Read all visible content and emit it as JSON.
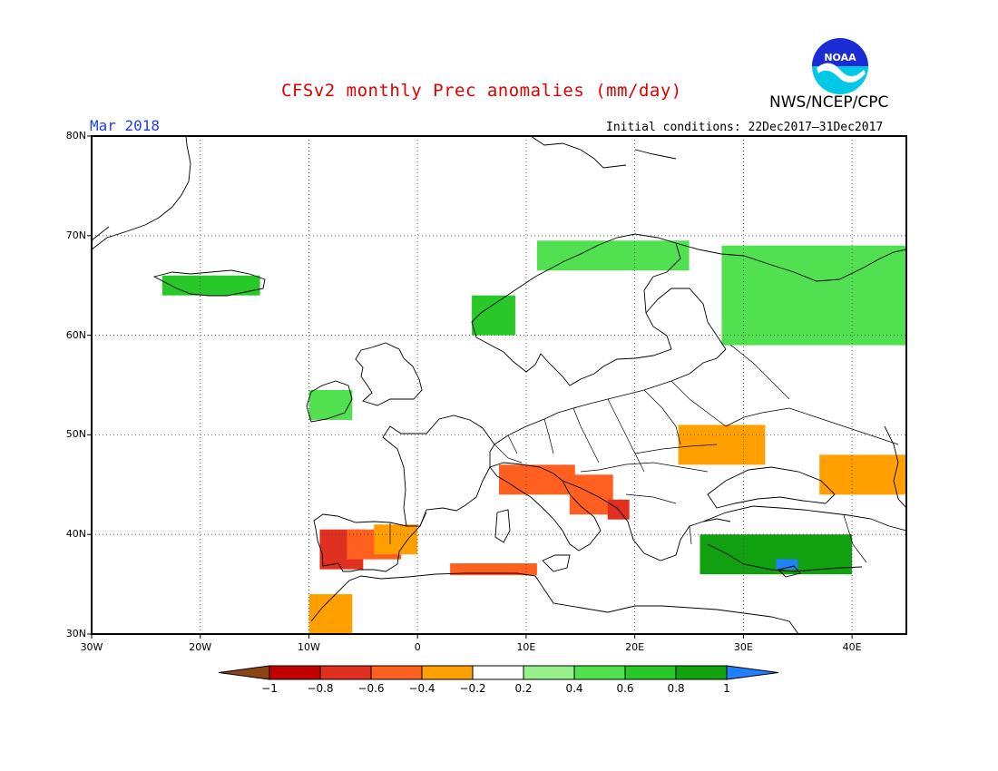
{
  "header": {
    "title": "CFSv2 monthly Prec anomalies (mm/day)",
    "org": "NWS/NCEP/CPC",
    "month": "Mar 2018",
    "init_conditions": "Initial conditions: 22Dec2017–31Dec2017",
    "logo_text": "NOAA"
  },
  "map": {
    "lon_range": [
      -30,
      45
    ],
    "lat_range": [
      30,
      80
    ],
    "lat_labels": [
      "80N",
      "70N",
      "60N",
      "50N",
      "40N",
      "30N"
    ],
    "lon_labels": [
      "30W",
      "20W",
      "10W",
      "0",
      "10E",
      "20E",
      "30E",
      "40E"
    ],
    "grid": "dotted",
    "land_color": "#ffffff",
    "border_color": "#000000"
  },
  "colorbar": {
    "labels": [
      "−1",
      "−0.8",
      "−0.6",
      "−0.4",
      "−0.2",
      "0.2",
      "0.4",
      "0.6",
      "0.8",
      "1"
    ],
    "colors": [
      "#8b4513",
      "#c00000",
      "#e03020",
      "#ff6020",
      "#ffa000",
      "#ffffff",
      "#96f08c",
      "#50e050",
      "#28c828",
      "#10a010",
      "#2080ff"
    ]
  },
  "anomalies": [
    {
      "region": "Portugal / W Iberia",
      "lon": -7,
      "lat": 38.5,
      "level": -0.8
    },
    {
      "region": "Central Spain",
      "lon": -4,
      "lat": 39,
      "level": -0.6
    },
    {
      "region": "E Spain",
      "lon": -2,
      "lat": 39.5,
      "level": -0.4
    },
    {
      "region": "Morocco",
      "lon": -8,
      "lat": 32,
      "level": -0.4
    },
    {
      "region": "Algeria coast",
      "lon": 7,
      "lat": 36.5,
      "level": -0.6
    },
    {
      "region": "N Italy",
      "lon": 11,
      "lat": 45.5,
      "level": -0.6
    },
    {
      "region": "Adriatic / Croatia",
      "lon": 16,
      "lat": 44,
      "level": -0.6
    },
    {
      "region": "Montenegro",
      "lon": 18.5,
      "lat": 42.5,
      "level": -0.8
    },
    {
      "region": "Ukraine",
      "lon": 28,
      "lat": 49,
      "level": -0.4
    },
    {
      "region": "Caucasus / Caspian",
      "lon": 41,
      "lat": 46,
      "level": -0.4
    },
    {
      "region": "Norway coast",
      "lon": 7,
      "lat": 62,
      "level": 0.6
    },
    {
      "region": "Scandinavia N",
      "lon": 18,
      "lat": 68,
      "level": 0.4
    },
    {
      "region": "NW Russia",
      "lon": 38,
      "lat": 64,
      "level": 0.4
    },
    {
      "region": "Iceland",
      "lon": -19,
      "lat": 65,
      "level": 0.6
    },
    {
      "region": "Ireland",
      "lon": -8,
      "lat": 53,
      "level": 0.4
    },
    {
      "region": "Turkey",
      "lon": 33,
      "lat": 38,
      "level": 0.8
    },
    {
      "region": "S Turkey",
      "lon": 34,
      "lat": 37,
      "level": 1.0
    }
  ]
}
